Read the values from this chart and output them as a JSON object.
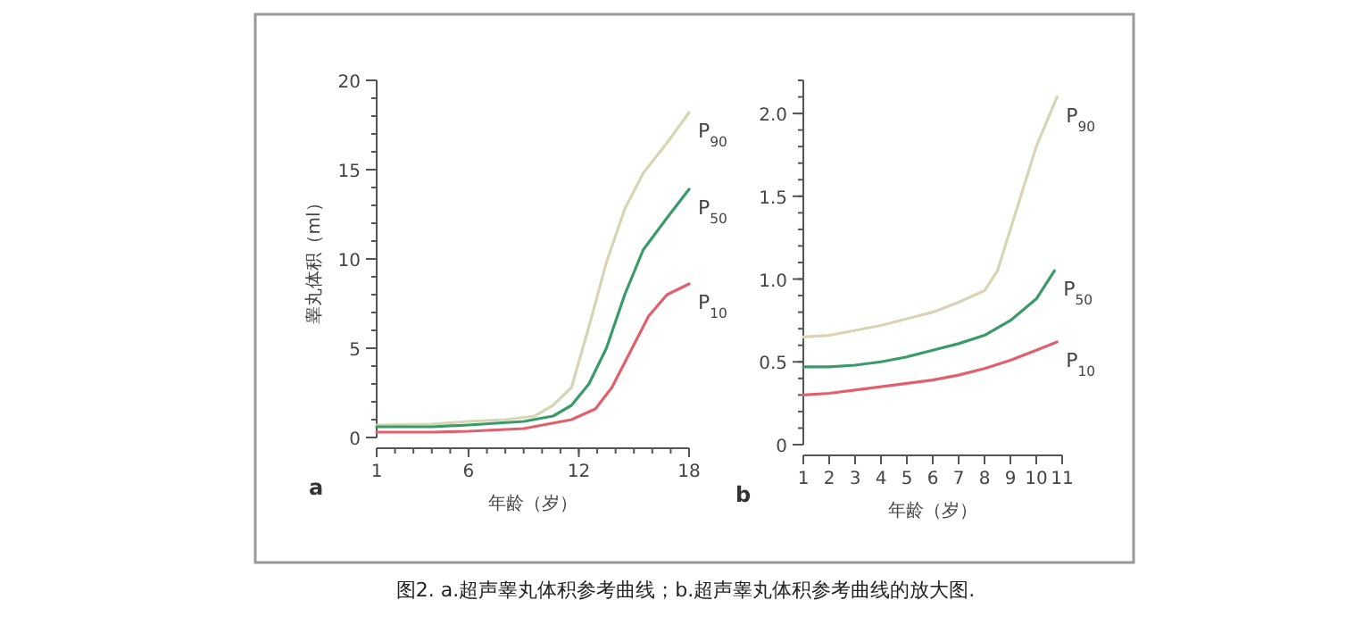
{
  "chart_data": [
    {
      "type": "line",
      "title": "a",
      "xlabel": "年龄（岁）",
      "ylabel": "睾丸体积（ml）",
      "xlim": [
        1,
        18
      ],
      "ylim": [
        0,
        20
      ],
      "xticks": [
        1,
        6,
        12,
        18
      ],
      "yticks": [
        0,
        5,
        10,
        15,
        20
      ],
      "series": [
        {
          "name": "P$_{90}$",
          "color": "#d6d6b4",
          "x": [
            1,
            4,
            6,
            8,
            9.6,
            10.6,
            11.6,
            12.55,
            13.5,
            14.5,
            15.5,
            16.8,
            18
          ],
          "values": [
            0.7,
            0.75,
            0.9,
            1.0,
            1.2,
            1.8,
            2.8,
            6.2,
            9.8,
            12.8,
            14.8,
            16.5,
            18.2
          ]
        },
        {
          "name": "P$_{50}$",
          "color": "#3a9a6a",
          "x": [
            1,
            4,
            6,
            9,
            10.6,
            11.6,
            12.55,
            13.5,
            14.5,
            15.5,
            16.8,
            18
          ],
          "values": [
            0.6,
            0.6,
            0.7,
            0.9,
            1.2,
            1.8,
            3.0,
            5.0,
            8.0,
            10.5,
            12.3,
            13.9
          ]
        },
        {
          "name": "P$_{10}$",
          "color": "#e0606e",
          "x": [
            1,
            4,
            6,
            9,
            11.6,
            12.9,
            13.8,
            14.8,
            15.8,
            16.8,
            18
          ],
          "values": [
            0.3,
            0.3,
            0.35,
            0.5,
            1.0,
            1.6,
            2.8,
            4.8,
            6.8,
            8.0,
            8.6
          ]
        }
      ],
      "annotations": [
        "图2. a.超声睾丸体积参考曲线；b.超声睾丸体积参考曲线的放大图."
      ]
    },
    {
      "type": "line",
      "title": "b",
      "xlabel": "年龄（岁）",
      "xlim": [
        1,
        11
      ],
      "ylim": [
        0,
        2.2
      ],
      "xticks": [
        1,
        2,
        3,
        4,
        5,
        6,
        7,
        8,
        9,
        10,
        11
      ],
      "yticks": [
        0,
        {
          "value": 0.5,
          "label": "0.5"
        },
        {
          "value": 1,
          "label": "1.0"
        },
        {
          "value": 1.5,
          "label": "1.5"
        },
        {
          "value": 2,
          "label": "2.0"
        }
      ],
      "series": [
        {
          "name": "P$_{90}$",
          "color": "#d6d6b4",
          "x": [
            1,
            2,
            3,
            4,
            5,
            6,
            7,
            8,
            8.5,
            9,
            9.5,
            10,
            10.8
          ],
          "values": [
            0.65,
            0.66,
            0.69,
            0.72,
            0.76,
            0.8,
            0.86,
            0.93,
            1.05,
            1.3,
            1.55,
            1.8,
            2.1
          ]
        },
        {
          "name": "P$_{50}$",
          "color": "#3a9a6a",
          "x": [
            1,
            2,
            3,
            4,
            5,
            6,
            7,
            8,
            9,
            10,
            10.7
          ],
          "values": [
            0.47,
            0.47,
            0.48,
            0.5,
            0.53,
            0.57,
            0.61,
            0.66,
            0.75,
            0.88,
            1.05
          ]
        },
        {
          "name": "P$_{10}$",
          "color": "#e0606e",
          "x": [
            1,
            2,
            3,
            4,
            5,
            6,
            7,
            8,
            9,
            10,
            10.8
          ],
          "values": [
            0.3,
            0.31,
            0.33,
            0.35,
            0.37,
            0.39,
            0.42,
            0.46,
            0.51,
            0.57,
            0.62
          ]
        }
      ]
    }
  ]
}
